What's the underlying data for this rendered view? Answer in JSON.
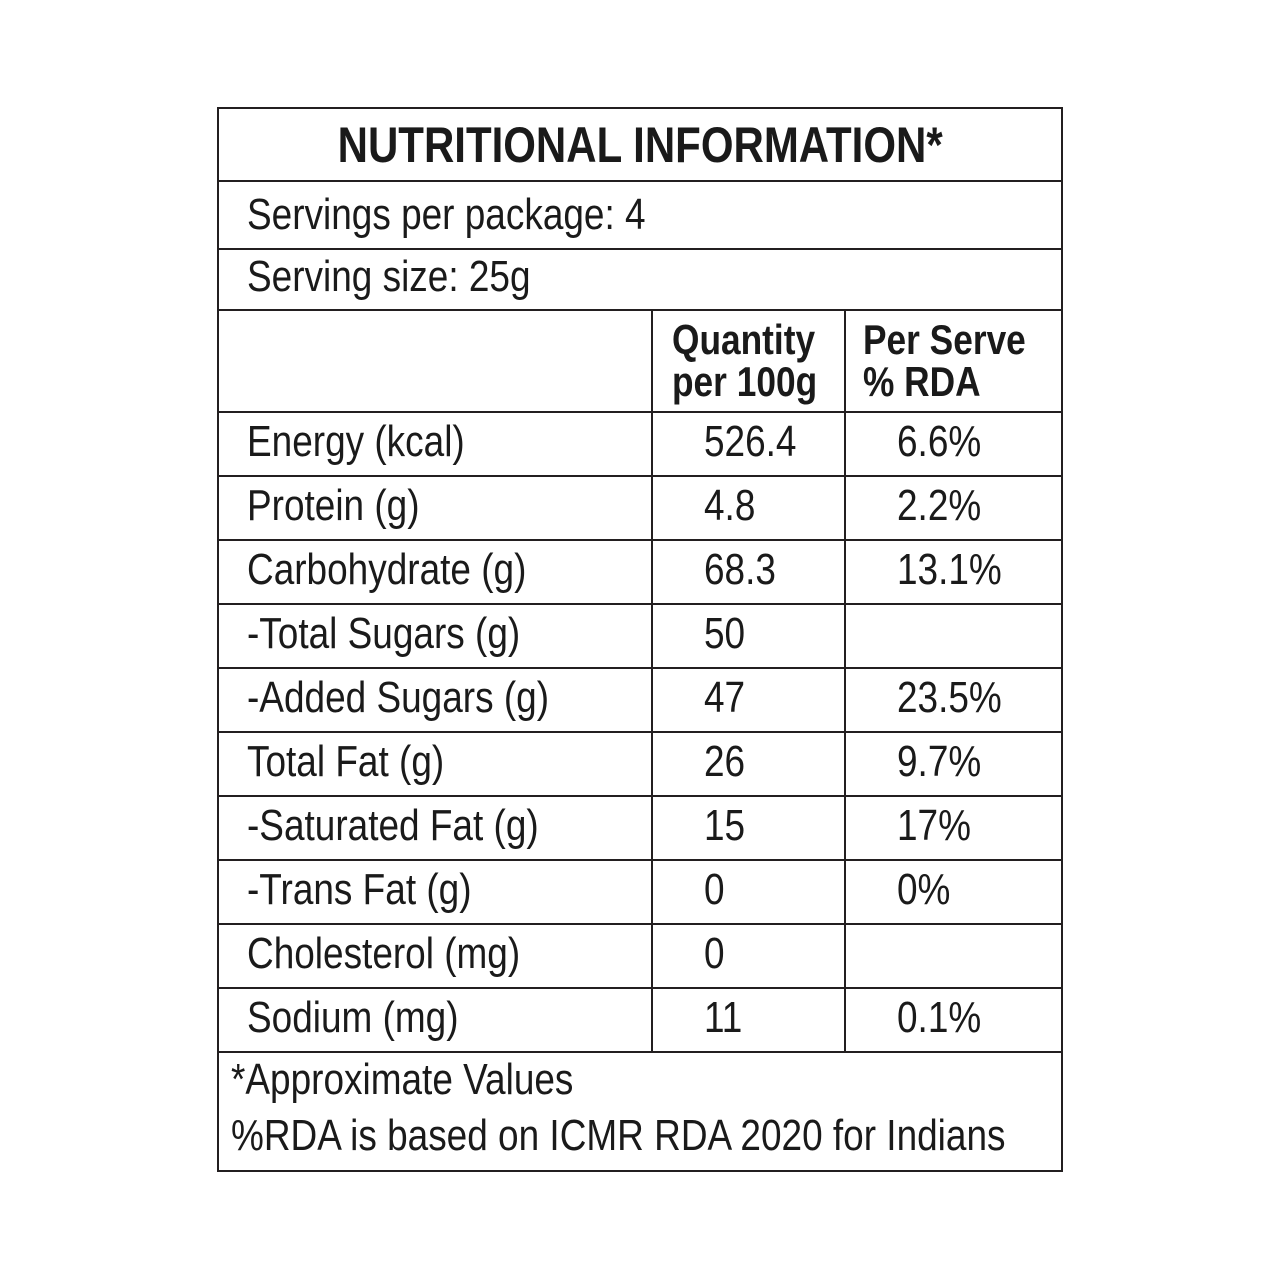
{
  "title": "NUTRITIONAL INFORMATION*",
  "servings_per_package": "Servings per package: 4",
  "serving_size": "Serving size: 25g",
  "columns": {
    "quantity_line1": "Quantity",
    "quantity_line2": "per 100g",
    "rda_line1": "Per Serve",
    "rda_line2": "% RDA"
  },
  "rows": [
    {
      "nutrient": "Energy (kcal)",
      "quantity": "526.4",
      "rda": "6.6%"
    },
    {
      "nutrient": "Protein (g)",
      "quantity": "4.8",
      "rda": "2.2%"
    },
    {
      "nutrient": "Carbohydrate (g)",
      "quantity": "68.3",
      "rda": "13.1%"
    },
    {
      "nutrient": "-Total Sugars (g)",
      "quantity": "50",
      "rda": ""
    },
    {
      "nutrient": "-Added Sugars (g)",
      "quantity": "47",
      "rda": "23.5%"
    },
    {
      "nutrient": "Total Fat (g)",
      "quantity": "26",
      "rda": "9.7%"
    },
    {
      "nutrient": "-Saturated Fat (g)",
      "quantity": "15",
      "rda": "17%"
    },
    {
      "nutrient": "-Trans Fat (g)",
      "quantity": "0",
      "rda": "0%"
    },
    {
      "nutrient": "Cholesterol (mg)",
      "quantity": "0",
      "rda": ""
    },
    {
      "nutrient": "Sodium (mg)",
      "quantity": "11",
      "rda": "0.1%"
    }
  ],
  "footer": {
    "note1": "*Approximate Values",
    "note2": "%RDA is based on ICMR RDA 2020 for Indians"
  }
}
